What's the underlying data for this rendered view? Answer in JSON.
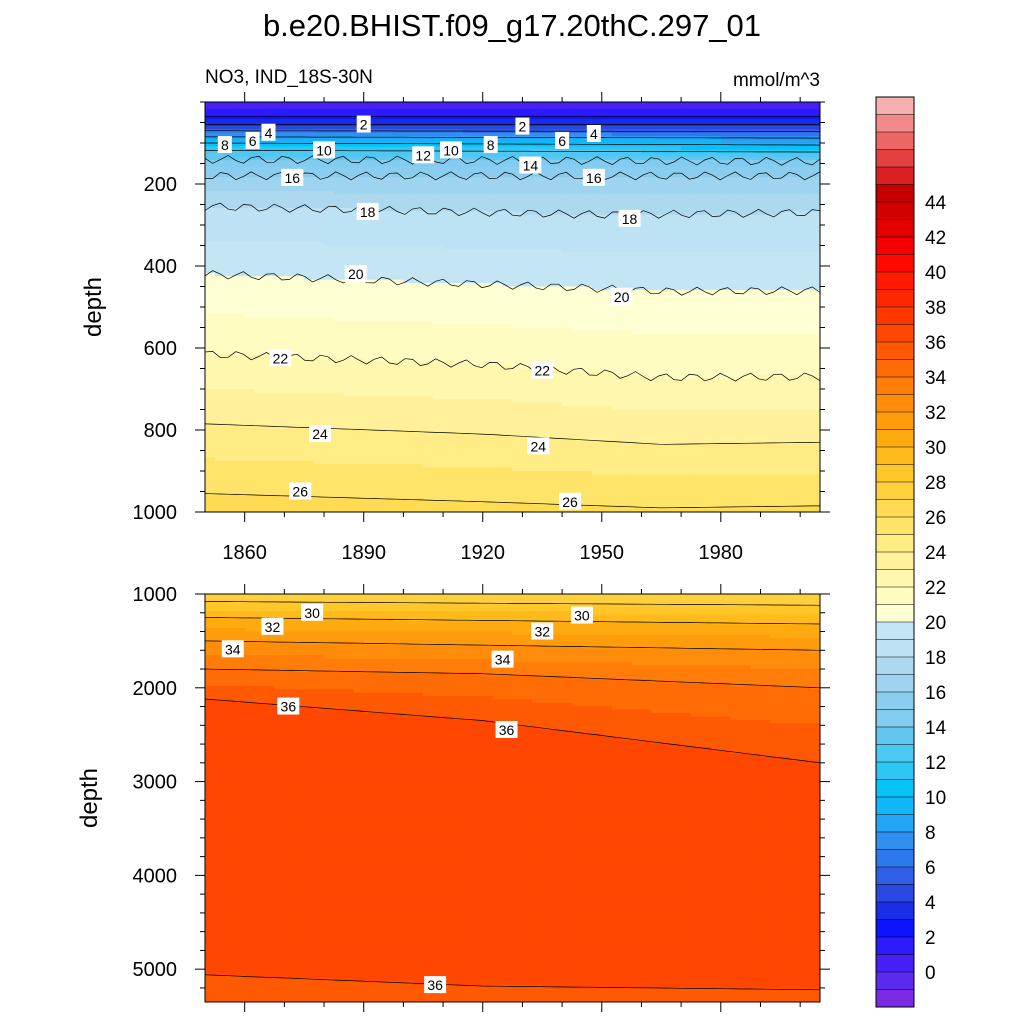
{
  "figure": {
    "title": "b.e20.BHIST.f09_g17.20thC.297_01",
    "left_string": "NO3, IND_18S-30N",
    "right_string": "mmol/m^3"
  },
  "chart_data": [
    {
      "type": "heatmap",
      "panel": "upper",
      "variable": "NO3",
      "region": "IND_18S-30N",
      "units": "mmol/m^3",
      "ylabel": "depth",
      "xlabel": "",
      "xlim": [
        1850,
        2005
      ],
      "ylim": [
        0,
        1000
      ],
      "y_reversed": true,
      "x_ticks": [
        1860,
        1890,
        1920,
        1950,
        1980
      ],
      "y_ticks": [
        200,
        400,
        600,
        800,
        1000
      ],
      "contour_levels_labeled": [
        2,
        4,
        6,
        8,
        10,
        12,
        14,
        16,
        18,
        20,
        22,
        24,
        26
      ],
      "contours": [
        {
          "level": 2,
          "depth_at_x": [
            [
              1850,
              35
            ],
            [
              2005,
              35
            ]
          ]
        },
        {
          "level": 4,
          "depth_at_x": [
            [
              1850,
              55
            ],
            [
              2005,
              55
            ]
          ]
        },
        {
          "level": 6,
          "depth_at_x": [
            [
              1850,
              70
            ],
            [
              2005,
              72
            ]
          ]
        },
        {
          "level": 8,
          "depth_at_x": [
            [
              1850,
              85
            ],
            [
              2005,
              88
            ]
          ]
        },
        {
          "level": 10,
          "depth_at_x": [
            [
              1850,
              100
            ],
            [
              2005,
              105
            ]
          ]
        },
        {
          "level": 12,
          "depth_at_x": [
            [
              1850,
              118
            ],
            [
              2005,
              122
            ]
          ]
        },
        {
          "level": 14,
          "depth_at_x": [
            [
              1850,
              140
            ],
            [
              2005,
              145
            ]
          ]
        },
        {
          "level": 16,
          "depth_at_x": [
            [
              1850,
              180
            ],
            [
              2005,
              180
            ]
          ]
        },
        {
          "level": 18,
          "depth_at_x": [
            [
              1850,
              255
            ],
            [
              1950,
              275
            ],
            [
              2005,
              270
            ]
          ]
        },
        {
          "level": 20,
          "depth_at_x": [
            [
              1850,
              420
            ],
            [
              1950,
              455
            ],
            [
              1965,
              462
            ],
            [
              2005,
              460
            ]
          ]
        },
        {
          "level": 22,
          "depth_at_x": [
            [
              1850,
              615
            ],
            [
              1920,
              640
            ],
            [
              1965,
              672
            ],
            [
              2005,
              670
            ]
          ]
        },
        {
          "level": 24,
          "depth_at_x": [
            [
              1850,
              785
            ],
            [
              1920,
              810
            ],
            [
              1965,
              835
            ],
            [
              2005,
              830
            ]
          ]
        },
        {
          "level": 26,
          "depth_at_x": [
            [
              1850,
              955
            ],
            [
              1920,
              975
            ],
            [
              1965,
              990
            ],
            [
              2005,
              985
            ]
          ]
        }
      ],
      "labels": [
        {
          "text": "2",
          "x": 1890,
          "depth": 55
        },
        {
          "text": "2",
          "x": 1930,
          "depth": 60
        },
        {
          "text": "4",
          "x": 1866,
          "depth": 75
        },
        {
          "text": "4",
          "x": 1948,
          "depth": 78
        },
        {
          "text": "6",
          "x": 1862,
          "depth": 95
        },
        {
          "text": "6",
          "x": 1940,
          "depth": 95
        },
        {
          "text": "8",
          "x": 1855,
          "depth": 105
        },
        {
          "text": "8",
          "x": 1922,
          "depth": 105
        },
        {
          "text": "10",
          "x": 1880,
          "depth": 118
        },
        {
          "text": "10",
          "x": 1912,
          "depth": 118
        },
        {
          "text": "12",
          "x": 1905,
          "depth": 130
        },
        {
          "text": "14",
          "x": 1932,
          "depth": 155
        },
        {
          "text": "16",
          "x": 1872,
          "depth": 185
        },
        {
          "text": "16",
          "x": 1948,
          "depth": 185
        },
        {
          "text": "18",
          "x": 1891,
          "depth": 268
        },
        {
          "text": "18",
          "x": 1957,
          "depth": 285
        },
        {
          "text": "20",
          "x": 1888,
          "depth": 420
        },
        {
          "text": "20",
          "x": 1955,
          "depth": 475
        },
        {
          "text": "22",
          "x": 1869,
          "depth": 625
        },
        {
          "text": "22",
          "x": 1935,
          "depth": 655
        },
        {
          "text": "24",
          "x": 1879,
          "depth": 810
        },
        {
          "text": "24",
          "x": 1934,
          "depth": 840
        },
        {
          "text": "26",
          "x": 1874,
          "depth": 950
        },
        {
          "text": "26",
          "x": 1942,
          "depth": 975
        }
      ]
    },
    {
      "type": "heatmap",
      "panel": "lower",
      "variable": "NO3",
      "region": "IND_18S-30N",
      "units": "mmol/m^3",
      "ylabel": "depth",
      "xlabel": "",
      "xlim": [
        1850,
        2005
      ],
      "ylim": [
        1000,
        5350
      ],
      "y_reversed": true,
      "x_ticks": [
        1860,
        1890,
        1920,
        1950,
        1980
      ],
      "y_ticks": [
        1000,
        2000,
        3000,
        4000,
        5000
      ],
      "contour_levels_labeled": [
        30,
        32,
        34,
        36
      ],
      "contours": [
        {
          "level": 28,
          "depth_at_x": [
            [
              1850,
              1080
            ],
            [
              2005,
              1120
            ]
          ]
        },
        {
          "level": 30,
          "depth_at_x": [
            [
              1850,
              1250
            ],
            [
              2005,
              1320
            ]
          ]
        },
        {
          "level": 32,
          "depth_at_x": [
            [
              1850,
              1500
            ],
            [
              2005,
              1600
            ]
          ]
        },
        {
          "level": 34,
          "depth_at_x": [
            [
              1850,
              1800
            ],
            [
              1920,
              1850
            ],
            [
              2005,
              2000
            ]
          ]
        },
        {
          "level": 36,
          "depth_at_x": [
            [
              1850,
              2120
            ],
            [
              1920,
              2350
            ],
            [
              2005,
              2800
            ]
          ]
        },
        {
          "level": 36,
          "depth_at_x": [
            [
              1850,
              5060
            ],
            [
              1920,
              5180
            ],
            [
              2005,
              5220
            ]
          ]
        }
      ],
      "labels": [
        {
          "text": "30",
          "x": 1877,
          "depth": 1200
        },
        {
          "text": "30",
          "x": 1945,
          "depth": 1230
        },
        {
          "text": "32",
          "x": 1867,
          "depth": 1350
        },
        {
          "text": "32",
          "x": 1935,
          "depth": 1400
        },
        {
          "text": "34",
          "x": 1857,
          "depth": 1590
        },
        {
          "text": "34",
          "x": 1925,
          "depth": 1700
        },
        {
          "text": "36",
          "x": 1871,
          "depth": 2200
        },
        {
          "text": "36",
          "x": 1926,
          "depth": 2450
        },
        {
          "text": "36",
          "x": 1908,
          "depth": 5170
        }
      ]
    }
  ],
  "colorbar": {
    "levels": [
      -2,
      0,
      2,
      4,
      6,
      8,
      10,
      12,
      14,
      16,
      18,
      20,
      22,
      24,
      26,
      28,
      30,
      32,
      34,
      36,
      38,
      40,
      42,
      44,
      46
    ],
    "tick_labels": [
      "0",
      "2",
      "4",
      "6",
      "8",
      "10",
      "12",
      "14",
      "16",
      "18",
      "20",
      "22",
      "24",
      "26",
      "28",
      "30",
      "32",
      "34",
      "36",
      "38",
      "40",
      "42",
      "44"
    ],
    "colors": [
      "#7a2ae6",
      "#5b2aed",
      "#4620f6",
      "#2c1bff",
      "#0d12ff",
      "#1a2de6",
      "#2a48e0",
      "#2f5fe8",
      "#2e78ee",
      "#2f90f2",
      "#24a4f6",
      "#10b6f8",
      "#05c2f7",
      "#2dc6f5",
      "#4cc8f2",
      "#62c6f0",
      "#82ccef",
      "#8bcdee",
      "#9fd4f0",
      "#acd8f0",
      "#bde2f3",
      "#c4e6f4",
      "#ffffd4",
      "#fffcc2",
      "#fff7ae",
      "#fff19a",
      "#ffec84",
      "#ffe46a",
      "#ffdb54",
      "#ffd03e",
      "#ffc72a",
      "#ffba1b",
      "#ffab10",
      "#ff9c0c",
      "#ff8c0a",
      "#ff7d08",
      "#ff6c05",
      "#ff5a03",
      "#ff4702",
      "#ff3801",
      "#ff2700",
      "#ff1a00",
      "#ff0800",
      "#f40000",
      "#e40000",
      "#d30000",
      "#c40000",
      "#d82020",
      "#e44040",
      "#ec6666",
      "#f28a8a",
      "#f7b0b0"
    ]
  }
}
